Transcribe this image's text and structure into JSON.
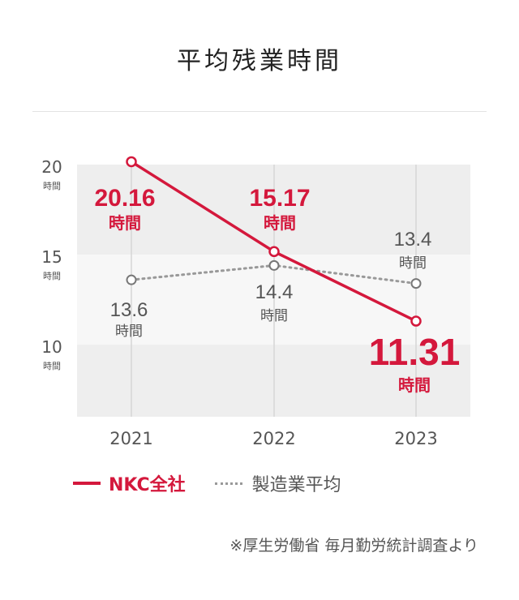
{
  "title": "平均残業時間",
  "chart_data": {
    "type": "line",
    "categories": [
      "2021",
      "2022",
      "2023"
    ],
    "ylim": [
      6,
      20
    ],
    "yticks": [
      {
        "value": 20,
        "label": "20",
        "unit": "時間"
      },
      {
        "value": 15,
        "label": "15",
        "unit": "時間"
      },
      {
        "value": 10,
        "label": "10",
        "unit": "時間"
      }
    ],
    "series": [
      {
        "name": "NKC全社",
        "values": [
          20.16,
          15.17,
          11.31
        ],
        "labels": [
          "20.16",
          "15.17",
          "11.31"
        ],
        "unit": "時間",
        "color": "#d4183c",
        "style": "solid"
      },
      {
        "name": "製造業平均",
        "values": [
          13.6,
          14.4,
          13.4
        ],
        "labels": [
          "13.6",
          "14.4",
          "13.4"
        ],
        "unit": "時間",
        "color": "#999999",
        "style": "dotted"
      }
    ]
  },
  "source": "※厚生労働省 毎月勤労統計調査より"
}
